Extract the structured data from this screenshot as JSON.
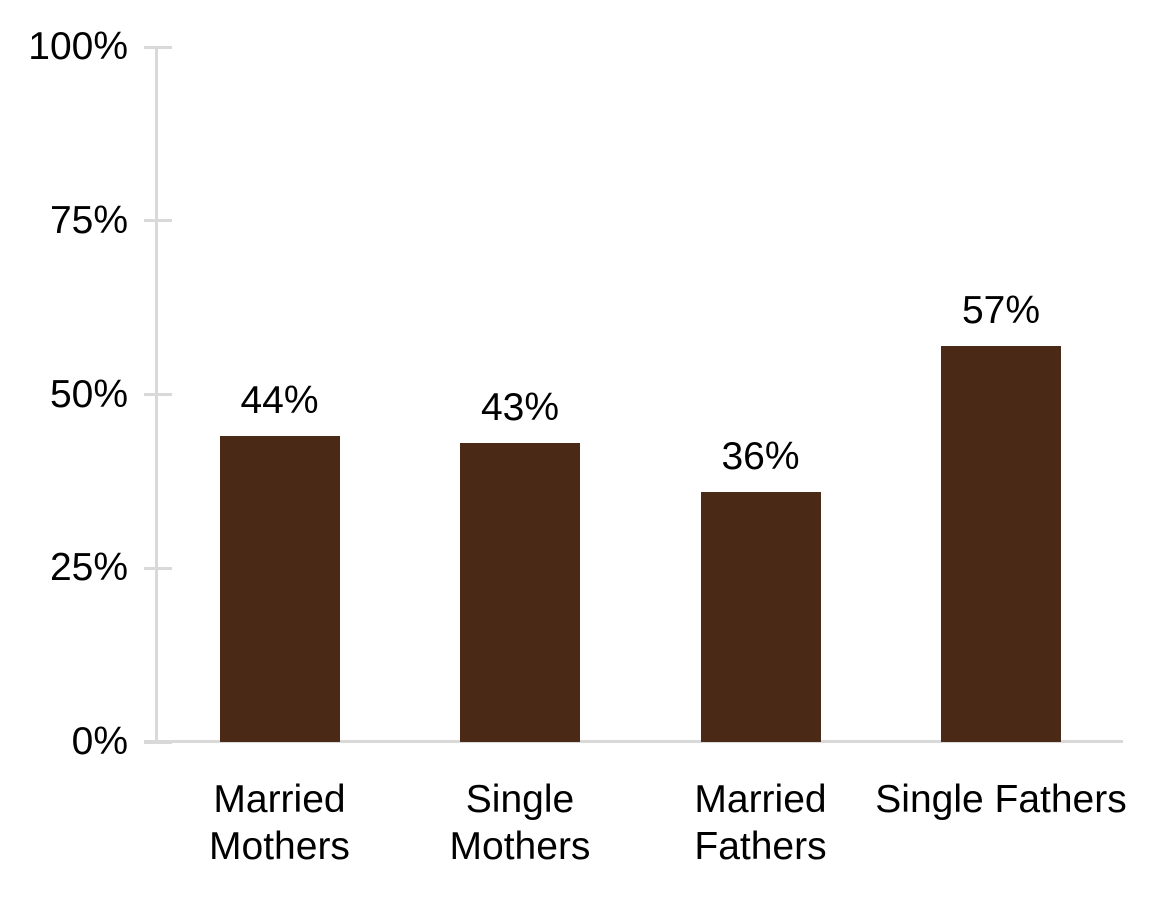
{
  "chart_data": {
    "type": "bar",
    "title": "",
    "categories": [
      "Married Mothers",
      "Single Mothers",
      "Married Fathers",
      "Single Fathers"
    ],
    "category_lines": [
      [
        "Married",
        "Mothers"
      ],
      [
        "Single",
        "Mothers"
      ],
      [
        "Married",
        "Fathers"
      ],
      [
        "Single Fathers"
      ]
    ],
    "values": [
      44,
      43,
      36,
      57
    ],
    "data_labels": [
      "44%",
      "43%",
      "36%",
      "57%"
    ],
    "y_ticks": [
      {
        "label": "100%",
        "value": 100
      },
      {
        "label": "75%",
        "value": 75
      },
      {
        "label": "50%",
        "value": 50
      },
      {
        "label": "25%",
        "value": 25
      },
      {
        "label": "0%",
        "value": 0
      }
    ],
    "ylim": [
      0,
      100
    ],
    "xlabel": "",
    "ylabel": "",
    "grid": "off",
    "legend": "none",
    "colors": {
      "bar": "#4b2917",
      "axis": "#d9d9d9",
      "text": "#000000"
    }
  }
}
